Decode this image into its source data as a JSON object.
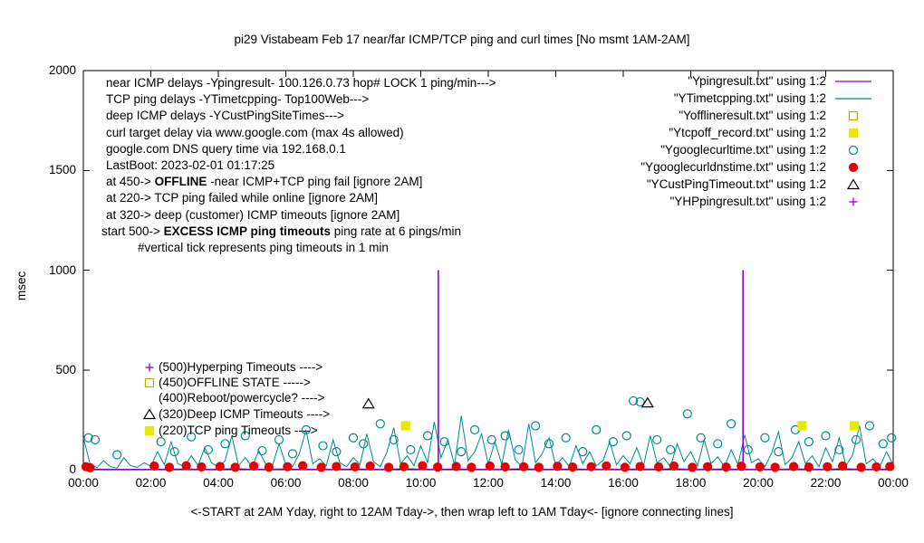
{
  "chart_data": {
    "type": "line",
    "title": "pi29 Vistabeam Feb 17  near/far ICMP/TCP ping and curl times [No msmt 1AM-2AM]",
    "ylabel": "msec",
    "xlabel": "<-START at 2AM Yday, right to 12AM Tday->, then wrap left to 1AM Tday<- [ignore connecting lines]",
    "ylim": [
      0,
      2000
    ],
    "xlim_hours": [
      0,
      24
    ],
    "yticks": [
      0,
      500,
      1000,
      1500,
      2000
    ],
    "xticks": [
      "00:00",
      "02:00",
      "04:00",
      "06:00",
      "08:00",
      "10:00",
      "12:00",
      "14:00",
      "16:00",
      "18:00",
      "20:00",
      "22:00",
      "00:00"
    ],
    "xtick_hours": [
      0,
      2,
      4,
      6,
      8,
      10,
      12,
      14,
      16,
      18,
      20,
      22,
      24
    ],
    "series": {
      "near_icmp": {
        "name": "Ypingresult near ICMP delays",
        "color": "#9400d3",
        "baseline": {
          "start": 0,
          "step": 0.5,
          "values": [
            5,
            3,
            2,
            2,
            2,
            3,
            4,
            2,
            3,
            5,
            2,
            3,
            4,
            2,
            3,
            2,
            4,
            3,
            2,
            5,
            3,
            2,
            4,
            3,
            2,
            3,
            5,
            2,
            3,
            4,
            2,
            3,
            2,
            4,
            3,
            5,
            2,
            3,
            4,
            2,
            3,
            2,
            4,
            3,
            2,
            5,
            3,
            2,
            4
          ]
        },
        "impulses": [
          [
            10.52,
            1000
          ],
          [
            19.55,
            1000
          ]
        ]
      },
      "tcp_ping": {
        "name": "YTimetcpping TCP ping delays",
        "color": "#008b8b",
        "start": 0,
        "step": 0.2,
        "values": [
          160,
          30,
          10,
          45,
          15,
          8,
          60,
          20,
          12,
          35,
          18,
          90,
          25,
          140,
          30,
          15,
          70,
          22,
          110,
          35,
          12,
          45,
          170,
          20,
          60,
          15,
          95,
          30,
          18,
          130,
          25,
          15,
          80,
          200,
          30,
          55,
          20,
          150,
          35,
          15,
          60,
          25,
          180,
          40,
          15,
          90,
          210,
          30,
          70,
          20,
          120,
          35,
          240,
          60,
          150,
          25,
          270,
          45,
          90,
          180,
          30,
          140,
          25,
          200,
          50,
          15,
          230,
          35,
          80,
          160,
          20,
          60,
          15,
          120,
          30,
          90,
          20,
          45,
          140,
          25,
          70,
          30,
          110,
          20,
          170,
          35,
          60,
          15,
          130,
          40,
          90,
          20,
          150,
          30,
          65,
          15,
          100,
          25,
          175,
          35,
          55,
          15,
          85,
          190,
          25,
          60,
          140,
          30,
          70,
          15,
          110,
          40,
          160,
          20,
          75,
          220,
          30,
          55,
          15,
          90,
          25
        ]
      },
      "curl": {
        "name": "Ygooglecurltime curl delays",
        "color": "#008b8b",
        "points": [
          [
            0.15,
            160
          ],
          [
            0.35,
            150
          ],
          [
            1.0,
            75
          ],
          [
            2.3,
            140
          ],
          [
            2.7,
            90
          ],
          [
            3.2,
            165
          ],
          [
            3.7,
            100
          ],
          [
            4.2,
            130
          ],
          [
            4.8,
            170
          ],
          [
            5.3,
            95
          ],
          [
            5.8,
            150
          ],
          [
            6.2,
            80
          ],
          [
            6.6,
            200
          ],
          [
            7.1,
            120
          ],
          [
            7.5,
            90
          ],
          [
            8.0,
            160
          ],
          [
            8.3,
            130
          ],
          [
            8.8,
            230
          ],
          [
            9.2,
            150
          ],
          [
            9.7,
            100
          ],
          [
            10.2,
            170
          ],
          [
            10.7,
            140
          ],
          [
            11.2,
            90
          ],
          [
            11.6,
            200
          ],
          [
            12.1,
            150
          ],
          [
            12.5,
            170
          ],
          [
            12.9,
            100
          ],
          [
            13.4,
            220
          ],
          [
            13.8,
            130
          ],
          [
            14.3,
            160
          ],
          [
            14.8,
            90
          ],
          [
            15.2,
            200
          ],
          [
            15.7,
            140
          ],
          [
            16.1,
            170
          ],
          [
            16.3,
            345
          ],
          [
            16.5,
            340
          ],
          [
            17.0,
            150
          ],
          [
            17.4,
            100
          ],
          [
            17.9,
            280
          ],
          [
            18.3,
            160
          ],
          [
            18.8,
            130
          ],
          [
            19.2,
            230
          ],
          [
            19.7,
            100
          ],
          [
            20.2,
            160
          ],
          [
            20.6,
            90
          ],
          [
            21.1,
            200
          ],
          [
            21.5,
            140
          ],
          [
            22.0,
            170
          ],
          [
            22.4,
            100
          ],
          [
            22.9,
            150
          ],
          [
            23.3,
            220
          ],
          [
            23.7,
            130
          ],
          [
            23.95,
            160
          ]
        ]
      },
      "dns": {
        "name": "Ygooglecurldnstime DNS query times",
        "color": "#e60000",
        "points": [
          [
            0.08,
            15
          ],
          [
            0.2,
            10
          ],
          [
            2.1,
            18
          ],
          [
            2.55,
            12
          ],
          [
            3.05,
            20
          ],
          [
            3.5,
            14
          ],
          [
            4.05,
            16
          ],
          [
            4.5,
            12
          ],
          [
            5.05,
            18
          ],
          [
            5.5,
            13
          ],
          [
            6.05,
            15
          ],
          [
            6.5,
            20
          ],
          [
            7.05,
            12
          ],
          [
            7.5,
            16
          ],
          [
            8.05,
            14
          ],
          [
            8.5,
            18
          ],
          [
            9.05,
            12
          ],
          [
            9.5,
            15
          ],
          [
            10.05,
            20
          ],
          [
            10.5,
            13
          ],
          [
            11.05,
            16
          ],
          [
            11.5,
            12
          ],
          [
            12.05,
            18
          ],
          [
            12.5,
            14
          ],
          [
            13.05,
            15
          ],
          [
            13.5,
            12
          ],
          [
            14.05,
            17
          ],
          [
            14.5,
            13
          ],
          [
            15.05,
            15
          ],
          [
            15.5,
            19
          ],
          [
            16.05,
            12
          ],
          [
            16.5,
            16
          ],
          [
            17.05,
            14
          ],
          [
            17.5,
            18
          ],
          [
            18.05,
            12
          ],
          [
            18.5,
            15
          ],
          [
            19.05,
            13
          ],
          [
            19.5,
            17
          ],
          [
            20.05,
            14
          ],
          [
            20.5,
            12
          ],
          [
            21.05,
            16
          ],
          [
            21.5,
            13
          ],
          [
            22.05,
            15
          ],
          [
            22.5,
            18
          ],
          [
            23.05,
            12
          ],
          [
            23.5,
            14
          ],
          [
            23.9,
            16
          ]
        ]
      },
      "cust_timeouts": {
        "name": "YCustPingTimeout deep ICMP timeouts",
        "color": "#000000",
        "points": [
          [
            8.45,
            330
          ],
          [
            16.72,
            335
          ]
        ]
      },
      "tcp_offline": {
        "name": "Ytcpoff_record TCP ping failed while online",
        "color": "#e8e800",
        "points": [
          [
            9.55,
            220
          ],
          [
            21.3,
            220
          ],
          [
            22.85,
            220
          ]
        ]
      }
    }
  },
  "legend": {
    "items": [
      {
        "label": "\"Ypingresult.txt\" using 1:2",
        "marker": {
          "type": "line",
          "color": "#9400d3"
        }
      },
      {
        "label": "\"YTimetcpping.txt\" using 1:2",
        "marker": {
          "type": "line",
          "color": "#008b8b"
        }
      },
      {
        "label": "\"Yofflineresult.txt\" using 1:2",
        "marker": {
          "type": "square",
          "filled": false,
          "color": "#c9a800"
        }
      },
      {
        "label": "\"Ytcpoff_record.txt\" using 1:2",
        "marker": {
          "type": "square",
          "filled": true,
          "color": "#e8e800"
        }
      },
      {
        "label": "\"Ygooglecurltime.txt\" using 1:2",
        "marker": {
          "type": "circle",
          "filled": false,
          "color": "#008b8b"
        }
      },
      {
        "label": "\"Ygooglecurldnstime.txt\" using 1:2",
        "marker": {
          "type": "circle",
          "filled": true,
          "color": "#e60000"
        }
      },
      {
        "label": "\"YCustPingTimeout.txt\" using 1:2",
        "marker": {
          "type": "triangle",
          "filled": false,
          "color": "#000000"
        }
      },
      {
        "label": "\"YHPpingresult.txt\" using 1:2",
        "marker": {
          "type": "plus",
          "color": "#9400d3"
        }
      }
    ]
  },
  "annotations": {
    "lines": [
      {
        "pre": "near ICMP delays -Ypingresult- 100.126.0.73 hop# LOCK 1 ping/min--->",
        "bold": "",
        "post": ""
      },
      {
        "pre": "TCP ping delays -YTimetcpping- Top100Web--->",
        "bold": "",
        "post": ""
      },
      {
        "pre": "deep ICMP delays -YCustPingSiteTimes--->",
        "bold": "",
        "post": ""
      },
      {
        "pre": "curl target delay via www.google.com (max 4s allowed)",
        "bold": "",
        "post": ""
      },
      {
        "pre": "google.com DNS query time via 192.168.0.1",
        "bold": "",
        "post": ""
      },
      {
        "pre": "LastBoot: 2023-02-01 01:17:25",
        "bold": "",
        "post": ""
      },
      {
        "pre": "at 450->  ",
        "bold": "OFFLINE",
        "post": " -near ICMP+TCP ping fail [ignore 2AM]"
      },
      {
        "pre": "at 220-> TCP ping failed while online [ignore 2AM]",
        "bold": "",
        "post": ""
      },
      {
        "pre": "at 320-> deep (customer) ICMP timeouts [ignore 2AM]",
        "bold": "",
        "post": ""
      },
      {
        "pre": "start 500->  ",
        "bold": "EXCESS ICMP ping timeouts",
        "post": "  ping rate at 6 pings/min"
      },
      {
        "pre": "#vertical tick represents ping timeouts in 1 min",
        "bold": "",
        "post": ""
      }
    ]
  },
  "mid_labels": [
    {
      "text": "(500)Hyperping Timeouts ---->",
      "marker": {
        "type": "plus",
        "color": "#9400d3"
      }
    },
    {
      "text": "(450)OFFLINE STATE ----->",
      "marker": {
        "type": "square",
        "filled": false,
        "color": "#c9a800"
      }
    },
    {
      "text": "(400)Reboot/powercycle? ---->",
      "marker": null
    },
    {
      "text": "(320)Deep ICMP Timeouts ---->",
      "marker": {
        "type": "triangle",
        "filled": false,
        "color": "#000000"
      }
    },
    {
      "text": "(220)TCP ping Timeouts ---->",
      "marker": {
        "type": "square",
        "filled": true,
        "color": "#e8e800"
      }
    }
  ]
}
